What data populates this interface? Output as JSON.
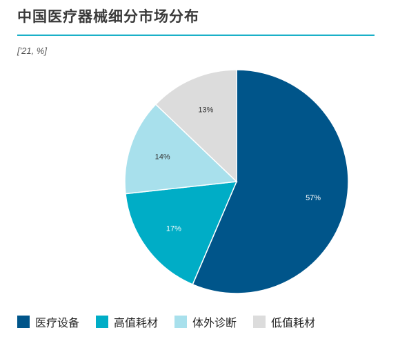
{
  "header": {
    "title": "中国医疗器械细分市场分布",
    "subtitle": "['21, %]"
  },
  "chart_data": {
    "type": "pie",
    "title": "中国医疗器械细分市场分布",
    "subtitle": "['21, %]",
    "slices": [
      {
        "label": "医疗设备",
        "value": 57,
        "display": "57%",
        "color": "#00558a",
        "label_color": "#ffffff"
      },
      {
        "label": "高值耗材",
        "value": 17,
        "display": "17%",
        "color": "#00adc6",
        "label_color": "#ffffff"
      },
      {
        "label": "体外诊断",
        "value": 14,
        "display": "14%",
        "color": "#a8e0ec",
        "label_color": "#333333"
      },
      {
        "label": "低值耗材",
        "value": 13,
        "display": "13%",
        "color": "#dcdcdc",
        "label_color": "#333333"
      }
    ],
    "start_angle": "12 o'clock",
    "direction": "clockwise",
    "legend_position": "bottom"
  }
}
